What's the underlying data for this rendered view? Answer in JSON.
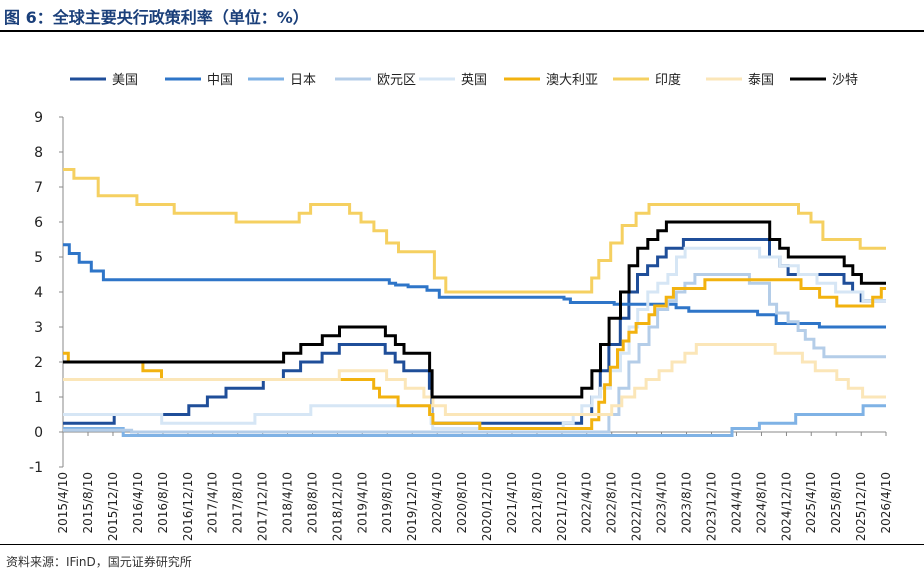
{
  "header": {
    "title": "图 6：全球主要央行政策利率（单位：%）"
  },
  "footer": {
    "source": "资料来源：IFinD，国元证券研究所"
  },
  "chart_data": {
    "type": "line",
    "title": "图 6：全球主要央行政策利率（单位：%）",
    "xlabel": "",
    "ylabel": "",
    "ylim": [
      -1,
      9
    ],
    "yticks": [
      -1,
      0,
      1,
      2,
      3,
      4,
      5,
      6,
      7,
      8,
      9
    ],
    "xlim": [
      "2015/4/10",
      "2026/4/10"
    ],
    "x_tick_labels": [
      "2015/4/10",
      "2015/8/10",
      "2015/12/10",
      "2016/4/10",
      "2016/8/10",
      "2016/12/10",
      "2017/4/10",
      "2017/8/10",
      "2017/12/10",
      "2018/4/10",
      "2018/8/10",
      "2018/12/10",
      "2019/4/10",
      "2019/8/10",
      "2019/12/10",
      "2020/4/10",
      "2020/8/10",
      "2020/12/10",
      "2021/4/10",
      "2021/8/10",
      "2021/12/10",
      "2022/4/10",
      "2022/8/10",
      "2022/12/10",
      "2023/4/10",
      "2023/8/10",
      "2023/12/10",
      "2024/4/10",
      "2024/8/10",
      "2024/12/10",
      "2025/4/10",
      "2025/8/10",
      "2025/12/10",
      "2026/4/10"
    ],
    "grid": false,
    "legend": "top",
    "series": [
      {
        "name": "美国",
        "color": "#1f4e99",
        "width": 3,
        "points": [
          [
            "2015/4/10",
            0.25
          ],
          [
            "2015/12/16",
            0.5
          ],
          [
            "2016/12/14",
            0.75
          ],
          [
            "2017/3/15",
            1.0
          ],
          [
            "2017/6/14",
            1.25
          ],
          [
            "2017/12/13",
            1.5
          ],
          [
            "2018/3/21",
            1.75
          ],
          [
            "2018/6/13",
            2.0
          ],
          [
            "2018/9/26",
            2.25
          ],
          [
            "2018/12/19",
            2.5
          ],
          [
            "2019/7/31",
            2.25
          ],
          [
            "2019/9/18",
            2.0
          ],
          [
            "2019/10/30",
            1.75
          ],
          [
            "2020/3/3",
            1.25
          ],
          [
            "2020/3/15",
            0.25
          ],
          [
            "2022/3/16",
            0.5
          ],
          [
            "2022/5/4",
            1.0
          ],
          [
            "2022/6/15",
            1.75
          ],
          [
            "2022/7/27",
            2.5
          ],
          [
            "2022/9/21",
            3.25
          ],
          [
            "2022/11/2",
            4.0
          ],
          [
            "2022/12/14",
            4.5
          ],
          [
            "2023/2/1",
            4.75
          ],
          [
            "2023/3/22",
            5.0
          ],
          [
            "2023/5/3",
            5.25
          ],
          [
            "2023/7/26",
            5.5
          ],
          [
            "2024/9/18",
            5.0
          ],
          [
            "2024/11/7",
            4.75
          ],
          [
            "2024/12/18",
            4.5
          ],
          [
            "2025/9/17",
            4.25
          ],
          [
            "2025/10/29",
            4.0
          ],
          [
            "2025/12/10",
            3.75
          ],
          [
            "2026/4/10",
            3.75
          ]
        ]
      },
      {
        "name": "中国",
        "color": "#2e75c8",
        "width": 3,
        "points": [
          [
            "2015/4/10",
            5.35
          ],
          [
            "2015/5/11",
            5.1
          ],
          [
            "2015/6/28",
            4.85
          ],
          [
            "2015/8/26",
            4.6
          ],
          [
            "2015/10/24",
            4.35
          ],
          [
            "2018/4/20",
            4.35
          ],
          [
            "2019/8/20",
            4.25
          ],
          [
            "2019/9/20",
            4.2
          ],
          [
            "2019/11/20",
            4.15
          ],
          [
            "2020/2/20",
            4.05
          ],
          [
            "2020/4/20",
            3.85
          ],
          [
            "2021/12/20",
            3.8
          ],
          [
            "2022/1/20",
            3.7
          ],
          [
            "2022/8/22",
            3.65
          ],
          [
            "2023/6/20",
            3.55
          ],
          [
            "2023/8/21",
            3.45
          ],
          [
            "2024/7/22",
            3.35
          ],
          [
            "2024/10/21",
            3.1
          ],
          [
            "2025/5/20",
            3.0
          ],
          [
            "2026/4/10",
            3.0
          ]
        ]
      },
      {
        "name": "日本",
        "color": "#7fb2e5",
        "width": 3,
        "points": [
          [
            "2015/4/10",
            0.1
          ],
          [
            "2016/1/29",
            -0.1
          ],
          [
            "2024/3/19",
            0.1
          ],
          [
            "2024/7/31",
            0.25
          ],
          [
            "2025/1/24",
            0.5
          ],
          [
            "2025/12/19",
            0.75
          ],
          [
            "2026/4/10",
            0.75
          ]
        ]
      },
      {
        "name": "欧元区",
        "color": "#b4cde8",
        "width": 3,
        "points": [
          [
            "2015/4/10",
            0.05
          ],
          [
            "2016/3/10",
            0.0
          ],
          [
            "2022/7/27",
            0.5
          ],
          [
            "2022/9/14",
            1.25
          ],
          [
            "2022/11/2",
            2.0
          ],
          [
            "2022/12/21",
            2.5
          ],
          [
            "2023/2/8",
            3.0
          ],
          [
            "2023/3/22",
            3.5
          ],
          [
            "2023/5/10",
            3.75
          ],
          [
            "2023/6/21",
            4.0
          ],
          [
            "2023/8/2",
            4.25
          ],
          [
            "2023/9/20",
            4.5
          ],
          [
            "2024/6/12",
            4.25
          ],
          [
            "2024/9/18",
            3.65
          ],
          [
            "2024/10/23",
            3.4
          ],
          [
            "2024/12/18",
            3.15
          ],
          [
            "2025/2/5",
            2.9
          ],
          [
            "2025/3/12",
            2.65
          ],
          [
            "2025/4/23",
            2.4
          ],
          [
            "2025/6/11",
            2.15
          ],
          [
            "2026/4/10",
            2.15
          ]
        ]
      },
      {
        "name": "英国",
        "color": "#d6e6f5",
        "width": 3,
        "points": [
          [
            "2015/4/10",
            0.5
          ],
          [
            "2016/8/4",
            0.25
          ],
          [
            "2017/11/2",
            0.5
          ],
          [
            "2018/8/2",
            0.75
          ],
          [
            "2020/3/11",
            0.25
          ],
          [
            "2020/3/19",
            0.1
          ],
          [
            "2021/12/16",
            0.25
          ],
          [
            "2022/2/3",
            0.5
          ],
          [
            "2022/3/17",
            0.75
          ],
          [
            "2022/5/5",
            1.0
          ],
          [
            "2022/6/16",
            1.25
          ],
          [
            "2022/8/4",
            1.75
          ],
          [
            "2022/9/22",
            2.25
          ],
          [
            "2022/11/3",
            3.0
          ],
          [
            "2022/12/15",
            3.5
          ],
          [
            "2023/2/2",
            4.0
          ],
          [
            "2023/3/23",
            4.25
          ],
          [
            "2023/5/11",
            4.5
          ],
          [
            "2023/6/22",
            5.0
          ],
          [
            "2023/8/3",
            5.25
          ],
          [
            "2024/8/1",
            5.0
          ],
          [
            "2024/11/7",
            4.75
          ],
          [
            "2025/2/6",
            4.5
          ],
          [
            "2025/5/8",
            4.25
          ],
          [
            "2025/8/7",
            4.0
          ],
          [
            "2025/12/18",
            3.75
          ],
          [
            "2026/4/10",
            3.75
          ]
        ]
      },
      {
        "name": "澳大利亚",
        "color": "#f2b20f",
        "width": 3,
        "points": [
          [
            "2015/4/10",
            2.25
          ],
          [
            "2015/5/6",
            2.0
          ],
          [
            "2016/5/4",
            1.75
          ],
          [
            "2016/8/3",
            1.5
          ],
          [
            "2019/6/5",
            1.25
          ],
          [
            "2019/7/3",
            1.0
          ],
          [
            "2019/10/2",
            0.75
          ],
          [
            "2020/3/4",
            0.5
          ],
          [
            "2020/3/20",
            0.25
          ],
          [
            "2020/11/4",
            0.1
          ],
          [
            "2022/5/4",
            0.35
          ],
          [
            "2022/6/8",
            0.85
          ],
          [
            "2022/7/6",
            1.35
          ],
          [
            "2022/8/3",
            1.85
          ],
          [
            "2022/9/7",
            2.35
          ],
          [
            "2022/10/5",
            2.6
          ],
          [
            "2022/11/2",
            2.85
          ],
          [
            "2022/12/7",
            3.1
          ],
          [
            "2023/2/8",
            3.35
          ],
          [
            "2023/3/8",
            3.6
          ],
          [
            "2023/5/3",
            3.85
          ],
          [
            "2023/6/7",
            4.1
          ],
          [
            "2023/11/8",
            4.35
          ],
          [
            "2025/2/19",
            4.1
          ],
          [
            "2025/5/21",
            3.85
          ],
          [
            "2025/8/13",
            3.6
          ],
          [
            "2026/2/4",
            3.85
          ],
          [
            "2026/3/18",
            4.1
          ],
          [
            "2026/4/10",
            4.1
          ]
        ]
      },
      {
        "name": "印度",
        "color": "#f5d061",
        "width": 3,
        "points": [
          [
            "2015/4/10",
            7.5
          ],
          [
            "2015/6/2",
            7.25
          ],
          [
            "2015/9/29",
            6.75
          ],
          [
            "2016/4/5",
            6.5
          ],
          [
            "2016/10/4",
            6.25
          ],
          [
            "2017/8/2",
            6.0
          ],
          [
            "2018/6/6",
            6.25
          ],
          [
            "2018/8/1",
            6.5
          ],
          [
            "2019/2/7",
            6.25
          ],
          [
            "2019/4/4",
            6.0
          ],
          [
            "2019/6/6",
            5.75
          ],
          [
            "2019/8/7",
            5.4
          ],
          [
            "2019/10/4",
            5.15
          ],
          [
            "2020/3/27",
            4.4
          ],
          [
            "2020/5/22",
            4.0
          ],
          [
            "2022/5/4",
            4.4
          ],
          [
            "2022/6/8",
            4.9
          ],
          [
            "2022/8/5",
            5.4
          ],
          [
            "2022/9/30",
            5.9
          ],
          [
            "2022/12/7",
            6.25
          ],
          [
            "2023/2/8",
            6.5
          ],
          [
            "2025/2/7",
            6.25
          ],
          [
            "2025/4/9",
            6.0
          ],
          [
            "2025/6/6",
            5.5
          ],
          [
            "2025/12/5",
            5.25
          ],
          [
            "2026/4/10",
            5.25
          ]
        ]
      },
      {
        "name": "泰国",
        "color": "#fbe6b8",
        "width": 3,
        "points": [
          [
            "2015/4/10",
            1.5
          ],
          [
            "2018/12/19",
            1.75
          ],
          [
            "2019/8/7",
            1.5
          ],
          [
            "2019/11/6",
            1.25
          ],
          [
            "2020/2/5",
            1.0
          ],
          [
            "2020/3/20",
            0.75
          ],
          [
            "2020/5/20",
            0.5
          ],
          [
            "2022/8/10",
            0.75
          ],
          [
            "2022/9/28",
            1.0
          ],
          [
            "2022/11/30",
            1.25
          ],
          [
            "2023/1/25",
            1.5
          ],
          [
            "2023/3/29",
            1.75
          ],
          [
            "2023/5/31",
            2.0
          ],
          [
            "2023/8/2",
            2.25
          ],
          [
            "2023/9/27",
            2.5
          ],
          [
            "2024/10/16",
            2.25
          ],
          [
            "2025/2/26",
            2.0
          ],
          [
            "2025/4/30",
            1.75
          ],
          [
            "2025/8/13",
            1.5
          ],
          [
            "2025/10/8",
            1.25
          ],
          [
            "2025/12/17",
            1.0
          ],
          [
            "2026/4/10",
            1.0
          ]
        ]
      },
      {
        "name": "沙特",
        "color": "#000000",
        "width": 3,
        "points": [
          [
            "2015/4/10",
            2.0
          ],
          [
            "2018/3/22",
            2.25
          ],
          [
            "2018/6/14",
            2.5
          ],
          [
            "2018/9/27",
            2.75
          ],
          [
            "2018/12/20",
            3.0
          ],
          [
            "2019/8/1",
            2.75
          ],
          [
            "2019/9/19",
            2.5
          ],
          [
            "2019/10/31",
            2.25
          ],
          [
            "2020/3/4",
            1.75
          ],
          [
            "2020/3/16",
            1.0
          ],
          [
            "2022/3/17",
            1.25
          ],
          [
            "2022/5/5",
            1.75
          ],
          [
            "2022/6/16",
            2.5
          ],
          [
            "2022/7/28",
            3.25
          ],
          [
            "2022/9/22",
            4.0
          ],
          [
            "2022/11/3",
            4.75
          ],
          [
            "2022/12/15",
            5.25
          ],
          [
            "2023/2/2",
            5.5
          ],
          [
            "2023/3/23",
            5.75
          ],
          [
            "2023/5/4",
            6.0
          ],
          [
            "2024/9/19",
            5.5
          ],
          [
            "2024/11/7",
            5.25
          ],
          [
            "2024/12/19",
            5.0
          ],
          [
            "2025/9/18",
            4.75
          ],
          [
            "2025/10/30",
            4.5
          ],
          [
            "2025/12/11",
            4.25
          ],
          [
            "2026/4/10",
            4.25
          ]
        ]
      }
    ]
  }
}
